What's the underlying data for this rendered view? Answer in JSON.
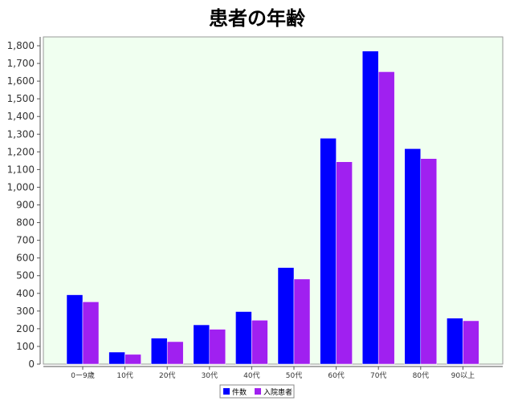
{
  "chart_data": {
    "type": "bar",
    "title": "患者の年齢",
    "categories": [
      "0ー9歳",
      "10代",
      "20代",
      "30代",
      "40代",
      "50代",
      "60代",
      "70代",
      "80代",
      "90以上"
    ],
    "series": [
      {
        "name": "件数",
        "color": "#0000ff",
        "values": [
          392,
          68,
          147,
          222,
          297,
          546,
          1277,
          1770,
          1218,
          260
        ]
      },
      {
        "name": "入院患者",
        "color": "#a020f0",
        "values": [
          352,
          55,
          127,
          197,
          248,
          481,
          1144,
          1653,
          1162,
          245
        ]
      }
    ],
    "ylim": [
      0,
      1850
    ],
    "yticks": [
      0,
      100,
      200,
      300,
      400,
      500,
      600,
      700,
      800,
      900,
      1000,
      1100,
      1200,
      1300,
      1400,
      1500,
      1600,
      1700,
      1800
    ],
    "ytick_labels": [
      "0",
      "100",
      "200",
      "300",
      "400",
      "500",
      "600",
      "700",
      "800",
      "900",
      "1,000",
      "1,100",
      "1,200",
      "1,300",
      "1,400",
      "1,500",
      "1,600",
      "1,700",
      "1,800"
    ],
    "xlabel": "",
    "ylabel": "",
    "legend_position": "bottom-center",
    "plot_background": "#f0fff0",
    "grid": false
  }
}
